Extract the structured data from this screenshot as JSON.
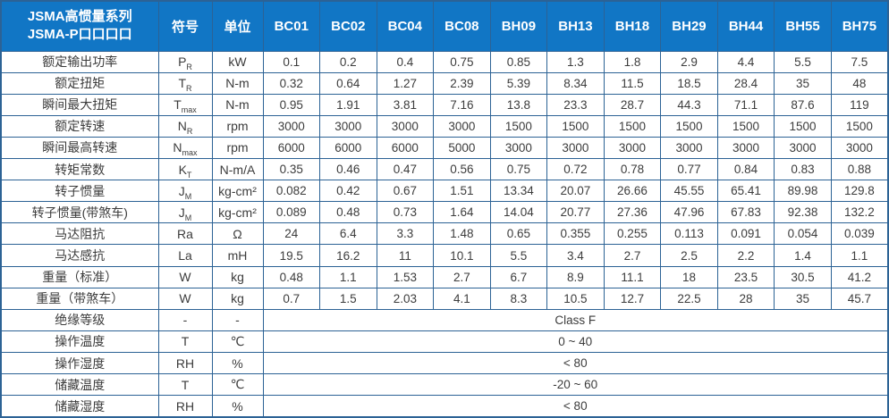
{
  "colors": {
    "header_bg": "#1176C5",
    "header_divider": "#0C569C",
    "grid_border": "#2C6295",
    "text": "#3C3C3C",
    "header_text": "#FFFFFF"
  },
  "table": {
    "header": {
      "series_title_line1": "JSMA高惯量系列",
      "series_title_line2": "JSMA-P口口口口",
      "symbol_col": "符号",
      "unit_col": "单位",
      "models": [
        "BC01",
        "BC02",
        "BC04",
        "BC08",
        "BH09",
        "BH13",
        "BH18",
        "BH29",
        "BH44",
        "BH55",
        "BH75"
      ]
    },
    "rows": [
      {
        "label": "额定输出功率",
        "symbol": "P",
        "symbol_sub": "R",
        "unit": "kW",
        "values": [
          "0.1",
          "0.2",
          "0.4",
          "0.75",
          "0.85",
          "1.3",
          "1.8",
          "2.9",
          "4.4",
          "5.5",
          "7.5"
        ]
      },
      {
        "label": "额定扭矩",
        "symbol": "T",
        "symbol_sub": "R",
        "unit": "N-m",
        "values": [
          "0.32",
          "0.64",
          "1.27",
          "2.39",
          "5.39",
          "8.34",
          "11.5",
          "18.5",
          "28.4",
          "35",
          "48"
        ]
      },
      {
        "label": "瞬间最大扭矩",
        "symbol": "T",
        "symbol_sub": "max",
        "unit": "N-m",
        "values": [
          "0.95",
          "1.91",
          "3.81",
          "7.16",
          "13.8",
          "23.3",
          "28.7",
          "44.3",
          "71.1",
          "87.6",
          "119"
        ]
      },
      {
        "label": "额定转速",
        "symbol": "N",
        "symbol_sub": "R",
        "unit": "rpm",
        "values": [
          "3000",
          "3000",
          "3000",
          "3000",
          "1500",
          "1500",
          "1500",
          "1500",
          "1500",
          "1500",
          "1500"
        ]
      },
      {
        "label": "瞬间最高转速",
        "symbol": "N",
        "symbol_sub": "max",
        "unit": "rpm",
        "values": [
          "6000",
          "6000",
          "6000",
          "5000",
          "3000",
          "3000",
          "3000",
          "3000",
          "3000",
          "3000",
          "3000"
        ]
      },
      {
        "label": "转矩常数",
        "symbol": "K",
        "symbol_sub": "T",
        "unit": "N-m/A",
        "values": [
          "0.35",
          "0.46",
          "0.47",
          "0.56",
          "0.75",
          "0.72",
          "0.78",
          "0.77",
          "0.84",
          "0.83",
          "0.88"
        ]
      },
      {
        "label": "转子惯量",
        "symbol": "J",
        "symbol_sub": "M",
        "unit": "kg-cm²",
        "values": [
          "0.082",
          "0.42",
          "0.67",
          "1.51",
          "13.34",
          "20.07",
          "26.66",
          "45.55",
          "65.41",
          "89.98",
          "129.8"
        ]
      },
      {
        "label": "转子惯量(带煞车)",
        "symbol": "J",
        "symbol_sub": "M",
        "unit": "kg-cm²",
        "values": [
          "0.089",
          "0.48",
          "0.73",
          "1.64",
          "14.04",
          "20.77",
          "27.36",
          "47.96",
          "67.83",
          "92.38",
          "132.2"
        ]
      },
      {
        "label": "马达阻抗",
        "symbol": "Ra",
        "symbol_sub": "",
        "unit": "Ω",
        "values": [
          "24",
          "6.4",
          "3.3",
          "1.48",
          "0.65",
          "0.355",
          "0.255",
          "0.113",
          "0.091",
          "0.054",
          "0.039"
        ]
      },
      {
        "label": "马达感抗",
        "symbol": "La",
        "symbol_sub": "",
        "unit": "mH",
        "values": [
          "19.5",
          "16.2",
          "11",
          "10.1",
          "5.5",
          "3.4",
          "2.7",
          "2.5",
          "2.2",
          "1.4",
          "1.1"
        ]
      },
      {
        "label": "重量（标准）",
        "symbol": "W",
        "symbol_sub": "",
        "unit": "kg",
        "values": [
          "0.48",
          "1.1",
          "1.53",
          "2.7",
          "6.7",
          "8.9",
          "11.1",
          "18",
          "23.5",
          "30.5",
          "41.2"
        ]
      },
      {
        "label": "重量（带煞车）",
        "symbol": "W",
        "symbol_sub": "",
        "unit": "kg",
        "values": [
          "0.7",
          "1.5",
          "2.03",
          "4.1",
          "8.3",
          "10.5",
          "12.7",
          "22.5",
          "28",
          "35",
          "45.7"
        ]
      },
      {
        "label": "绝缘等级",
        "symbol": "-",
        "symbol_sub": "",
        "unit": "-",
        "span_value": "Class F"
      },
      {
        "label": "操作温度",
        "symbol": "T",
        "symbol_sub": "",
        "unit": "℃",
        "span_value": "0 ~ 40"
      },
      {
        "label": "操作湿度",
        "symbol": "RH",
        "symbol_sub": "",
        "unit": "%",
        "span_value": "< 80"
      },
      {
        "label": "储藏温度",
        "symbol": "T",
        "symbol_sub": "",
        "unit": "℃",
        "span_value": "-20 ~ 60"
      },
      {
        "label": "储藏湿度",
        "symbol": "RH",
        "symbol_sub": "",
        "unit": "%",
        "span_value": "< 80"
      }
    ]
  }
}
